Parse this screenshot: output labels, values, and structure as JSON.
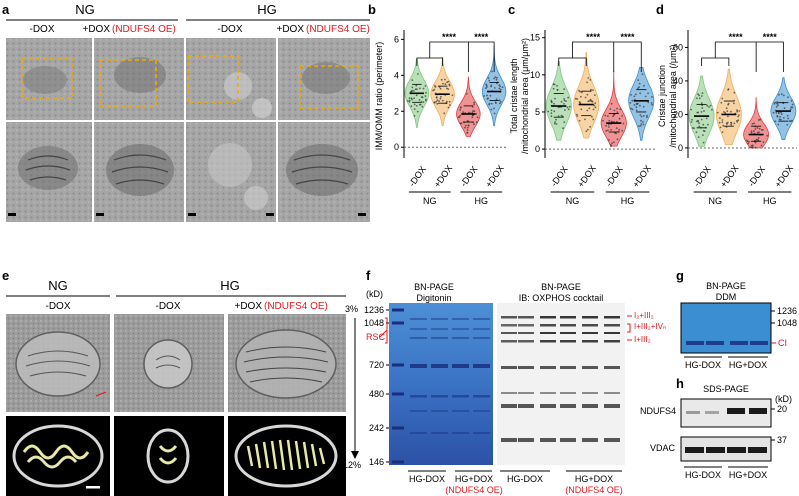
{
  "panels": {
    "a": {
      "letter": "a",
      "groups": [
        "NG",
        "HG"
      ],
      "conditions": [
        "-DOX",
        "+DOX",
        "-DOX",
        "+DOX"
      ],
      "oe_tag": "(NDUFS4 OE)"
    },
    "b": {
      "letter": "b"
    },
    "c": {
      "letter": "c"
    },
    "d": {
      "letter": "d"
    },
    "e": {
      "letter": "e",
      "groups": [
        "NG",
        "HG"
      ],
      "conditions": [
        "-DOX",
        "-DOX",
        "+DOX"
      ],
      "oe_tag": "(NDUFS4 OE)"
    },
    "f": {
      "letter": "f",
      "left_title": [
        "BN-PAGE",
        "Digitonin"
      ],
      "right_title": [
        "BN-PAGE",
        "IB: OXPHOS cocktail"
      ],
      "gradient_top": "3%",
      "gradient_bottom": "12%",
      "kd_unit": "(kD)",
      "markers": [
        "1236",
        "1048",
        "720",
        "480",
        "242",
        "146"
      ],
      "rsc_label": "RSC",
      "complex_labels": [
        "I₂+III₂",
        "I+III₂+IVₙ",
        "I+III₂"
      ],
      "lane_groups": [
        "HG-DOX",
        "HG+DOX",
        "HG-DOX",
        "HG+DOX"
      ],
      "oe_tag": "(NDUFS4 OE)"
    },
    "g": {
      "letter": "g",
      "title": [
        "BN-PAGE",
        "DDM"
      ],
      "markers": [
        "1236",
        "1048"
      ],
      "ci_label": "CI",
      "lane_groups": [
        "HG-DOX",
        "HG+DOX"
      ]
    },
    "h": {
      "letter": "h",
      "title": "SDS-PAGE",
      "kd_unit": "(kD)",
      "rows": [
        "NDUFS4",
        "VDAC"
      ],
      "markers": [
        "20",
        "37"
      ],
      "lane_groups": [
        "HG-DOX",
        "HG+DOX"
      ]
    }
  },
  "chart_data": [
    {
      "type": "violin",
      "panel": "b",
      "ylabel": "IMM/OMM ratio (perimeter)",
      "yticks": [
        0,
        2,
        4,
        6
      ],
      "ylim": [
        -0.6,
        6.3
      ],
      "categories": [
        "-DOX",
        "+DOX",
        "-DOX",
        "+DOX"
      ],
      "groups": [
        "NG",
        "HG"
      ],
      "colors": [
        "#7fc77d",
        "#f2ae5a",
        "#e23a3c",
        "#3a8fd0"
      ],
      "medians": [
        3.0,
        2.95,
        1.85,
        3.1
      ],
      "q1": [
        2.5,
        2.45,
        1.4,
        2.6
      ],
      "q3": [
        3.5,
        3.4,
        2.3,
        3.6
      ],
      "min": [
        1.1,
        1.2,
        0.6,
        1.2
      ],
      "max": [
        4.9,
        5.0,
        3.9,
        5.6
      ],
      "significance": [
        "****",
        "****"
      ]
    },
    {
      "type": "violin",
      "panel": "c",
      "ylabel": "Total cristae length /mitochondrial area (μm/μm²)",
      "yticks": [
        0,
        5,
        10,
        15
      ],
      "ylim": [
        -1.2,
        15.5
      ],
      "categories": [
        "-DOX",
        "+DOX",
        "-DOX",
        "+DOX"
      ],
      "groups": [
        "NG",
        "HG"
      ],
      "colors": [
        "#7fc77d",
        "#f2ae5a",
        "#e23a3c",
        "#3a8fd0"
      ],
      "medians": [
        5.8,
        6.0,
        3.5,
        6.5
      ],
      "q1": [
        4.3,
        4.5,
        2.3,
        5.0
      ],
      "q3": [
        7.5,
        7.8,
        4.8,
        8.0
      ],
      "min": [
        1.2,
        1.5,
        0.4,
        1.2
      ],
      "max": [
        11.8,
        13.0,
        10.5,
        11.0
      ],
      "significance": [
        "****",
        "****"
      ]
    },
    {
      "type": "violin",
      "panel": "d",
      "ylabel": "Cristae junction /mitochondrial area (/μm²)",
      "yticks": [
        0,
        20,
        40,
        60
      ],
      "ylim": [
        -6,
        68
      ],
      "categories": [
        "-DOX",
        "+DOX",
        "-DOX",
        "+DOX"
      ],
      "groups": [
        "NG",
        "HG"
      ],
      "colors": [
        "#7fc77d",
        "#f2ae5a",
        "#e23a3c",
        "#3a8fd0"
      ],
      "medians": [
        19,
        20,
        8,
        22
      ],
      "q1": [
        12,
        13,
        4,
        16
      ],
      "q3": [
        26,
        28,
        13,
        27
      ],
      "min": [
        1,
        2,
        0,
        5
      ],
      "max": [
        43,
        47,
        30,
        42
      ],
      "significance": [
        "****",
        "****"
      ]
    }
  ]
}
